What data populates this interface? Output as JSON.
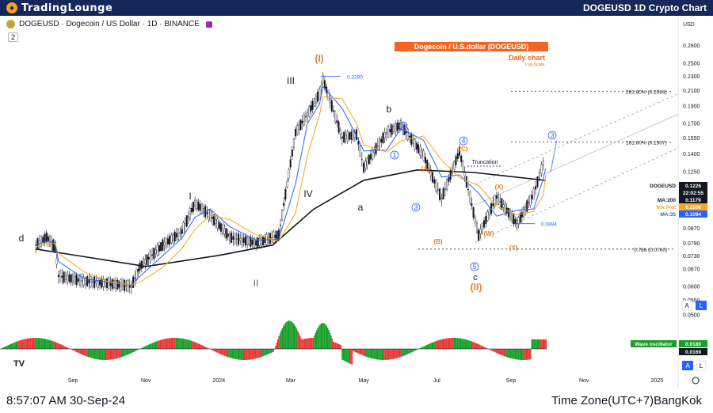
{
  "header": {
    "logo_text": "TradingLounge",
    "title": "DOGEUSD 1D Crypto Chart"
  },
  "symbol_line": "DOGEUSD · Dogecoin / US Dollar · 1D · BINANCE",
  "indicator_count": "2",
  "currency": "USD",
  "chart_data": {
    "type": "line",
    "title": "Dogecoin / U.S.dollar (DOGEUSD)",
    "subtitle": "Daily chart",
    "scale_note": "Log-Scale",
    "y_scale": "log",
    "ylim": [
      0.0465,
      0.308
    ],
    "y_ticks": [
      0.28,
      0.25,
      0.23,
      0.21,
      0.19,
      0.17,
      0.155,
      0.14,
      0.125,
      0.115,
      0.105,
      0.095,
      0.087,
      0.079,
      0.073,
      0.067,
      0.06,
      0.055,
      0.05
    ],
    "x_ticks": [
      "Sep",
      "Nov",
      "2024",
      "Mar",
      "May",
      "Jul",
      "Sep",
      "Nov",
      "2025"
    ],
    "price_x": [
      "Aug-23",
      "Sep-23",
      "Oct-23",
      "Nov-23",
      "Dec-23",
      "Jan-24",
      "Feb-24",
      "Mar-24",
      "Apr-24",
      "May-24",
      "Jun-24",
      "Jul-24",
      "Aug-24",
      "Sep-24"
    ],
    "price_points": [
      {
        "x": "2023-08-01",
        "y": 0.078
      },
      {
        "x": "2023-08-10",
        "y": 0.082
      },
      {
        "x": "2023-08-17",
        "y": 0.077
      },
      {
        "x": "2023-08-20",
        "y": 0.064
      },
      {
        "x": "2023-09-10",
        "y": 0.062
      },
      {
        "x": "2023-10-01",
        "y": 0.061
      },
      {
        "x": "2023-10-20",
        "y": 0.06
      },
      {
        "x": "2023-10-27",
        "y": 0.068
      },
      {
        "x": "2023-11-15",
        "y": 0.078
      },
      {
        "x": "2023-12-01",
        "y": 0.085
      },
      {
        "x": "2023-12-12",
        "y": 0.102
      },
      {
        "x": "2023-12-25",
        "y": 0.094
      },
      {
        "x": "2024-01-10",
        "y": 0.082
      },
      {
        "x": "2024-02-01",
        "y": 0.079
      },
      {
        "x": "2024-02-20",
        "y": 0.083
      },
      {
        "x": "2024-03-05",
        "y": 0.16
      },
      {
        "x": "2024-03-15",
        "y": 0.18
      },
      {
        "x": "2024-03-25",
        "y": 0.205
      },
      {
        "x": "2024-03-28",
        "y": 0.225
      },
      {
        "x": "2024-04-13",
        "y": 0.155
      },
      {
        "x": "2024-04-25",
        "y": 0.158
      },
      {
        "x": "2024-05-01",
        "y": 0.128
      },
      {
        "x": "2024-05-20",
        "y": 0.16
      },
      {
        "x": "2024-06-01",
        "y": 0.168
      },
      {
        "x": "2024-06-20",
        "y": 0.138
      },
      {
        "x": "2024-07-05",
        "y": 0.105
      },
      {
        "x": "2024-07-20",
        "y": 0.142
      },
      {
        "x": "2024-08-05",
        "y": 0.083
      },
      {
        "x": "2024-08-20",
        "y": 0.106
      },
      {
        "x": "2024-09-06",
        "y": 0.0894
      },
      {
        "x": "2024-09-20",
        "y": 0.108
      },
      {
        "x": "2024-09-28",
        "y": 0.132
      },
      {
        "x": "2024-09-30",
        "y": 0.1226
      }
    ],
    "ma200_points": [
      {
        "x": "2023-08-01",
        "y": 0.076
      },
      {
        "x": "2023-09-15",
        "y": 0.072
      },
      {
        "x": "2023-11-01",
        "y": 0.068
      },
      {
        "x": "2024-01-01",
        "y": 0.073
      },
      {
        "x": "2024-02-15",
        "y": 0.078
      },
      {
        "x": "2024-03-20",
        "y": 0.098
      },
      {
        "x": "2024-05-01",
        "y": 0.118
      },
      {
        "x": "2024-06-15",
        "y": 0.126
      },
      {
        "x": "2024-08-01",
        "y": 0.124
      },
      {
        "x": "2024-09-30",
        "y": 0.1179
      }
    ],
    "levels": [
      {
        "label": "261.80% (0.2084)",
        "value": 0.2084
      },
      {
        "label": "161.80% (0.1507)",
        "value": 0.1507
      },
      {
        "label": "0.786 (0.0760)",
        "value": 0.076
      }
    ],
    "marked_prices": [
      {
        "label": "0.2290",
        "value": 0.229
      },
      {
        "label": "0.0894",
        "value": 0.0894
      }
    ],
    "annotations": {
      "truncation": "Truncation",
      "wave_labels": [
        "d",
        "I",
        "II",
        "III",
        "IV",
        "(I)",
        "(II)",
        "a",
        "b",
        "c",
        "1",
        "2",
        "3",
        "4",
        "5",
        "(A)",
        "(B)",
        "(C)",
        "(W)",
        "(X)",
        "(Y)",
        "3"
      ]
    },
    "legend": [
      {
        "name": "DOGEUSD",
        "value": "0.1226",
        "color": "#131722"
      },
      {
        "name": "",
        "value": "22:02:55",
        "color": "#131722"
      },
      {
        "name": "MA:200",
        "value": "0.1179",
        "color": "#131722"
      },
      {
        "name": "MA:Plot",
        "value": "0.1108",
        "color": "#f5a623"
      },
      {
        "name": "MA:35",
        "value": "0.1094",
        "color": "#2962ff"
      }
    ],
    "oscillator": {
      "name": "Wave oscillator",
      "values": [
        "0.0180",
        "0.0169"
      ]
    }
  },
  "bottom": {
    "time_left": "8:57:07 AM 30-Sep-24",
    "time_right": "Time Zone(UTC+7)BangKok"
  },
  "scale_buttons": {
    "auto": "A",
    "log": "L"
  }
}
